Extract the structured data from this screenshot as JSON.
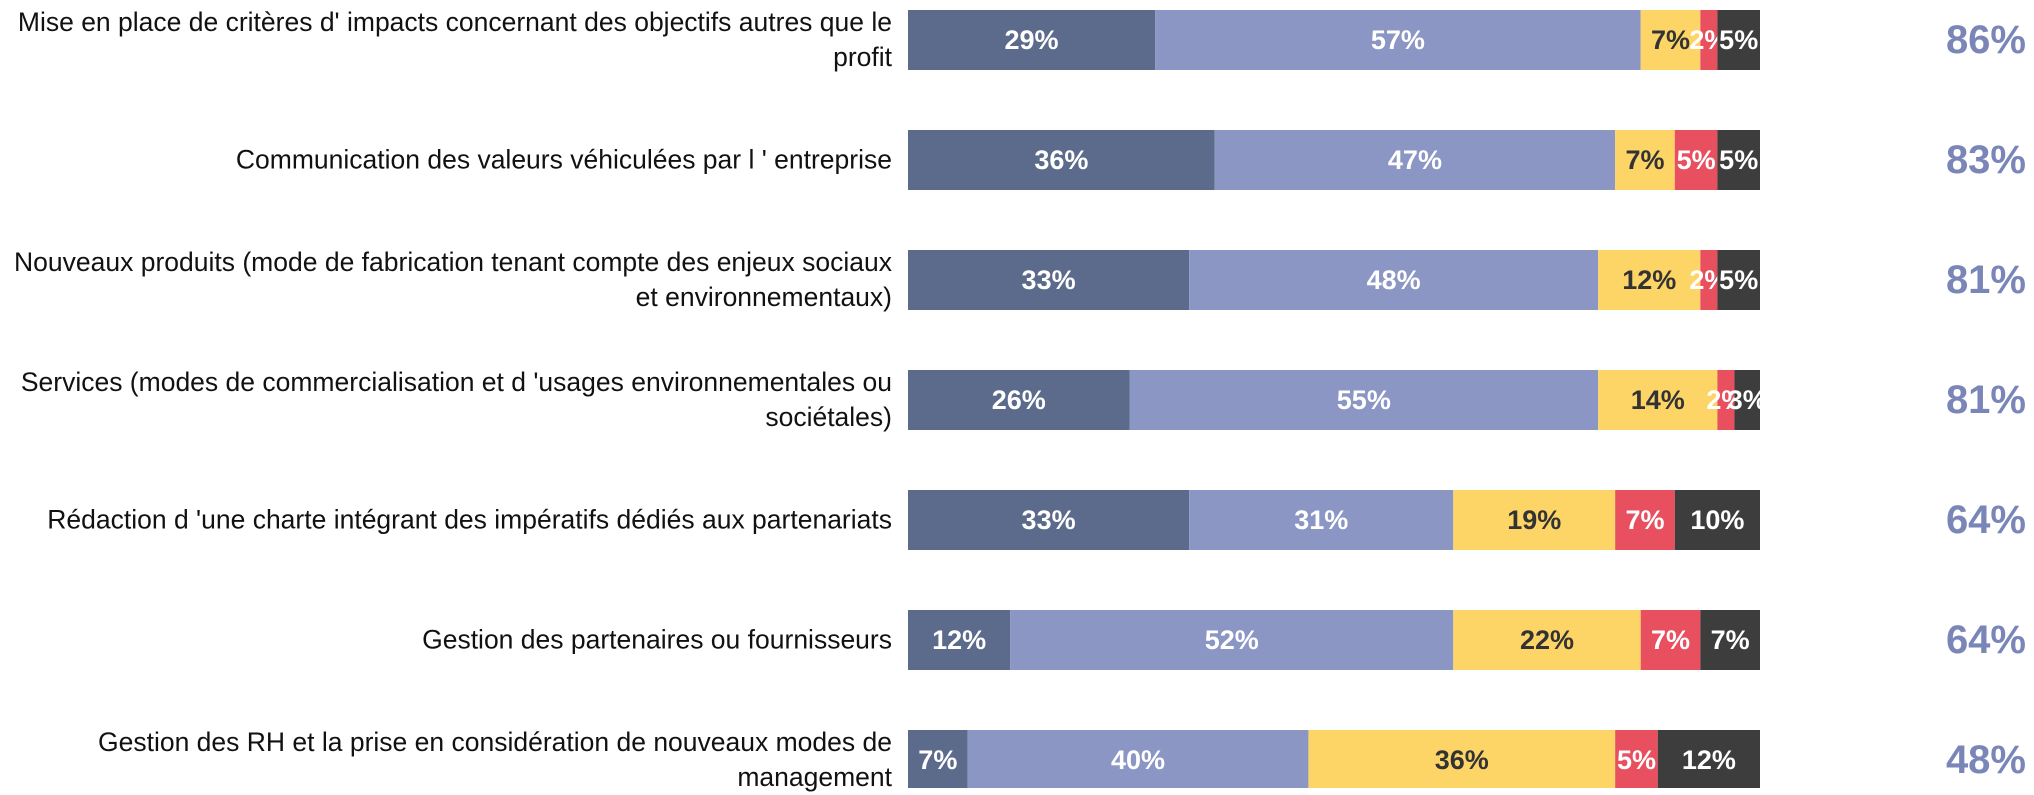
{
  "chart_data": {
    "type": "stacked-bar-horizontal",
    "categories": [
      "Mise en place de critères d' impacts concernant des objectifs autres que le profit",
      "Communication des valeurs véhiculées par l ' entreprise",
      "Nouveaux produits (mode de fabrication tenant compte des enjeux sociaux et environnementaux)",
      "Services (modes de commercialisation et d 'usages environnementales ou sociétales)",
      "Rédaction d 'une charte intégrant des impératifs dédiés aux partenariats",
      "Gestion des partenaires ou fournisseurs",
      "Gestion des RH et la prise en considération de nouveaux modes de management"
    ],
    "xlim": [
      0,
      100
    ],
    "series": [
      {
        "color": "#5c6a8c",
        "label_color": "#ffffff",
        "values": [
          29,
          36,
          33,
          26,
          33,
          12,
          7
        ],
        "value_labels": [
          "29%",
          "36%",
          "33%",
          "26%",
          "33%",
          "12%",
          "7%"
        ]
      },
      {
        "color": "#8c96c4",
        "label_color": "#ffffff",
        "values": [
          57,
          47,
          48,
          55,
          31,
          52,
          40
        ],
        "value_labels": [
          "57%",
          "47%",
          "48%",
          "55%",
          "31%",
          "52%",
          "40%"
        ]
      },
      {
        "color": "#fdd567",
        "label_color": "#333333",
        "values": [
          7,
          7,
          12,
          14,
          19,
          22,
          36
        ],
        "value_labels": [
          "7%",
          "7%",
          "12%",
          "14%",
          "19%",
          "22%",
          "36%"
        ]
      },
      {
        "color": "#e8505f",
        "label_color": "#ffffff",
        "values": [
          2,
          5,
          2,
          2,
          7,
          7,
          5
        ],
        "value_labels": [
          "2%",
          "5%",
          "2%",
          "2%",
          "7%",
          "7%",
          "5%"
        ]
      },
      {
        "color": "#3d3d3d",
        "label_color": "#ffffff",
        "values": [
          5,
          5,
          5,
          3,
          10,
          7,
          12
        ],
        "value_labels": [
          "5%",
          "5%",
          "5%",
          "3%",
          "10%",
          "7%",
          "12%"
        ]
      }
    ],
    "totals": {
      "color": "#7b86b8",
      "values": [
        86,
        83,
        81,
        81,
        64,
        64,
        48
      ],
      "value_labels": [
        "86%",
        "83%",
        "81%",
        "81%",
        "64%",
        "64%",
        "48%"
      ]
    }
  }
}
